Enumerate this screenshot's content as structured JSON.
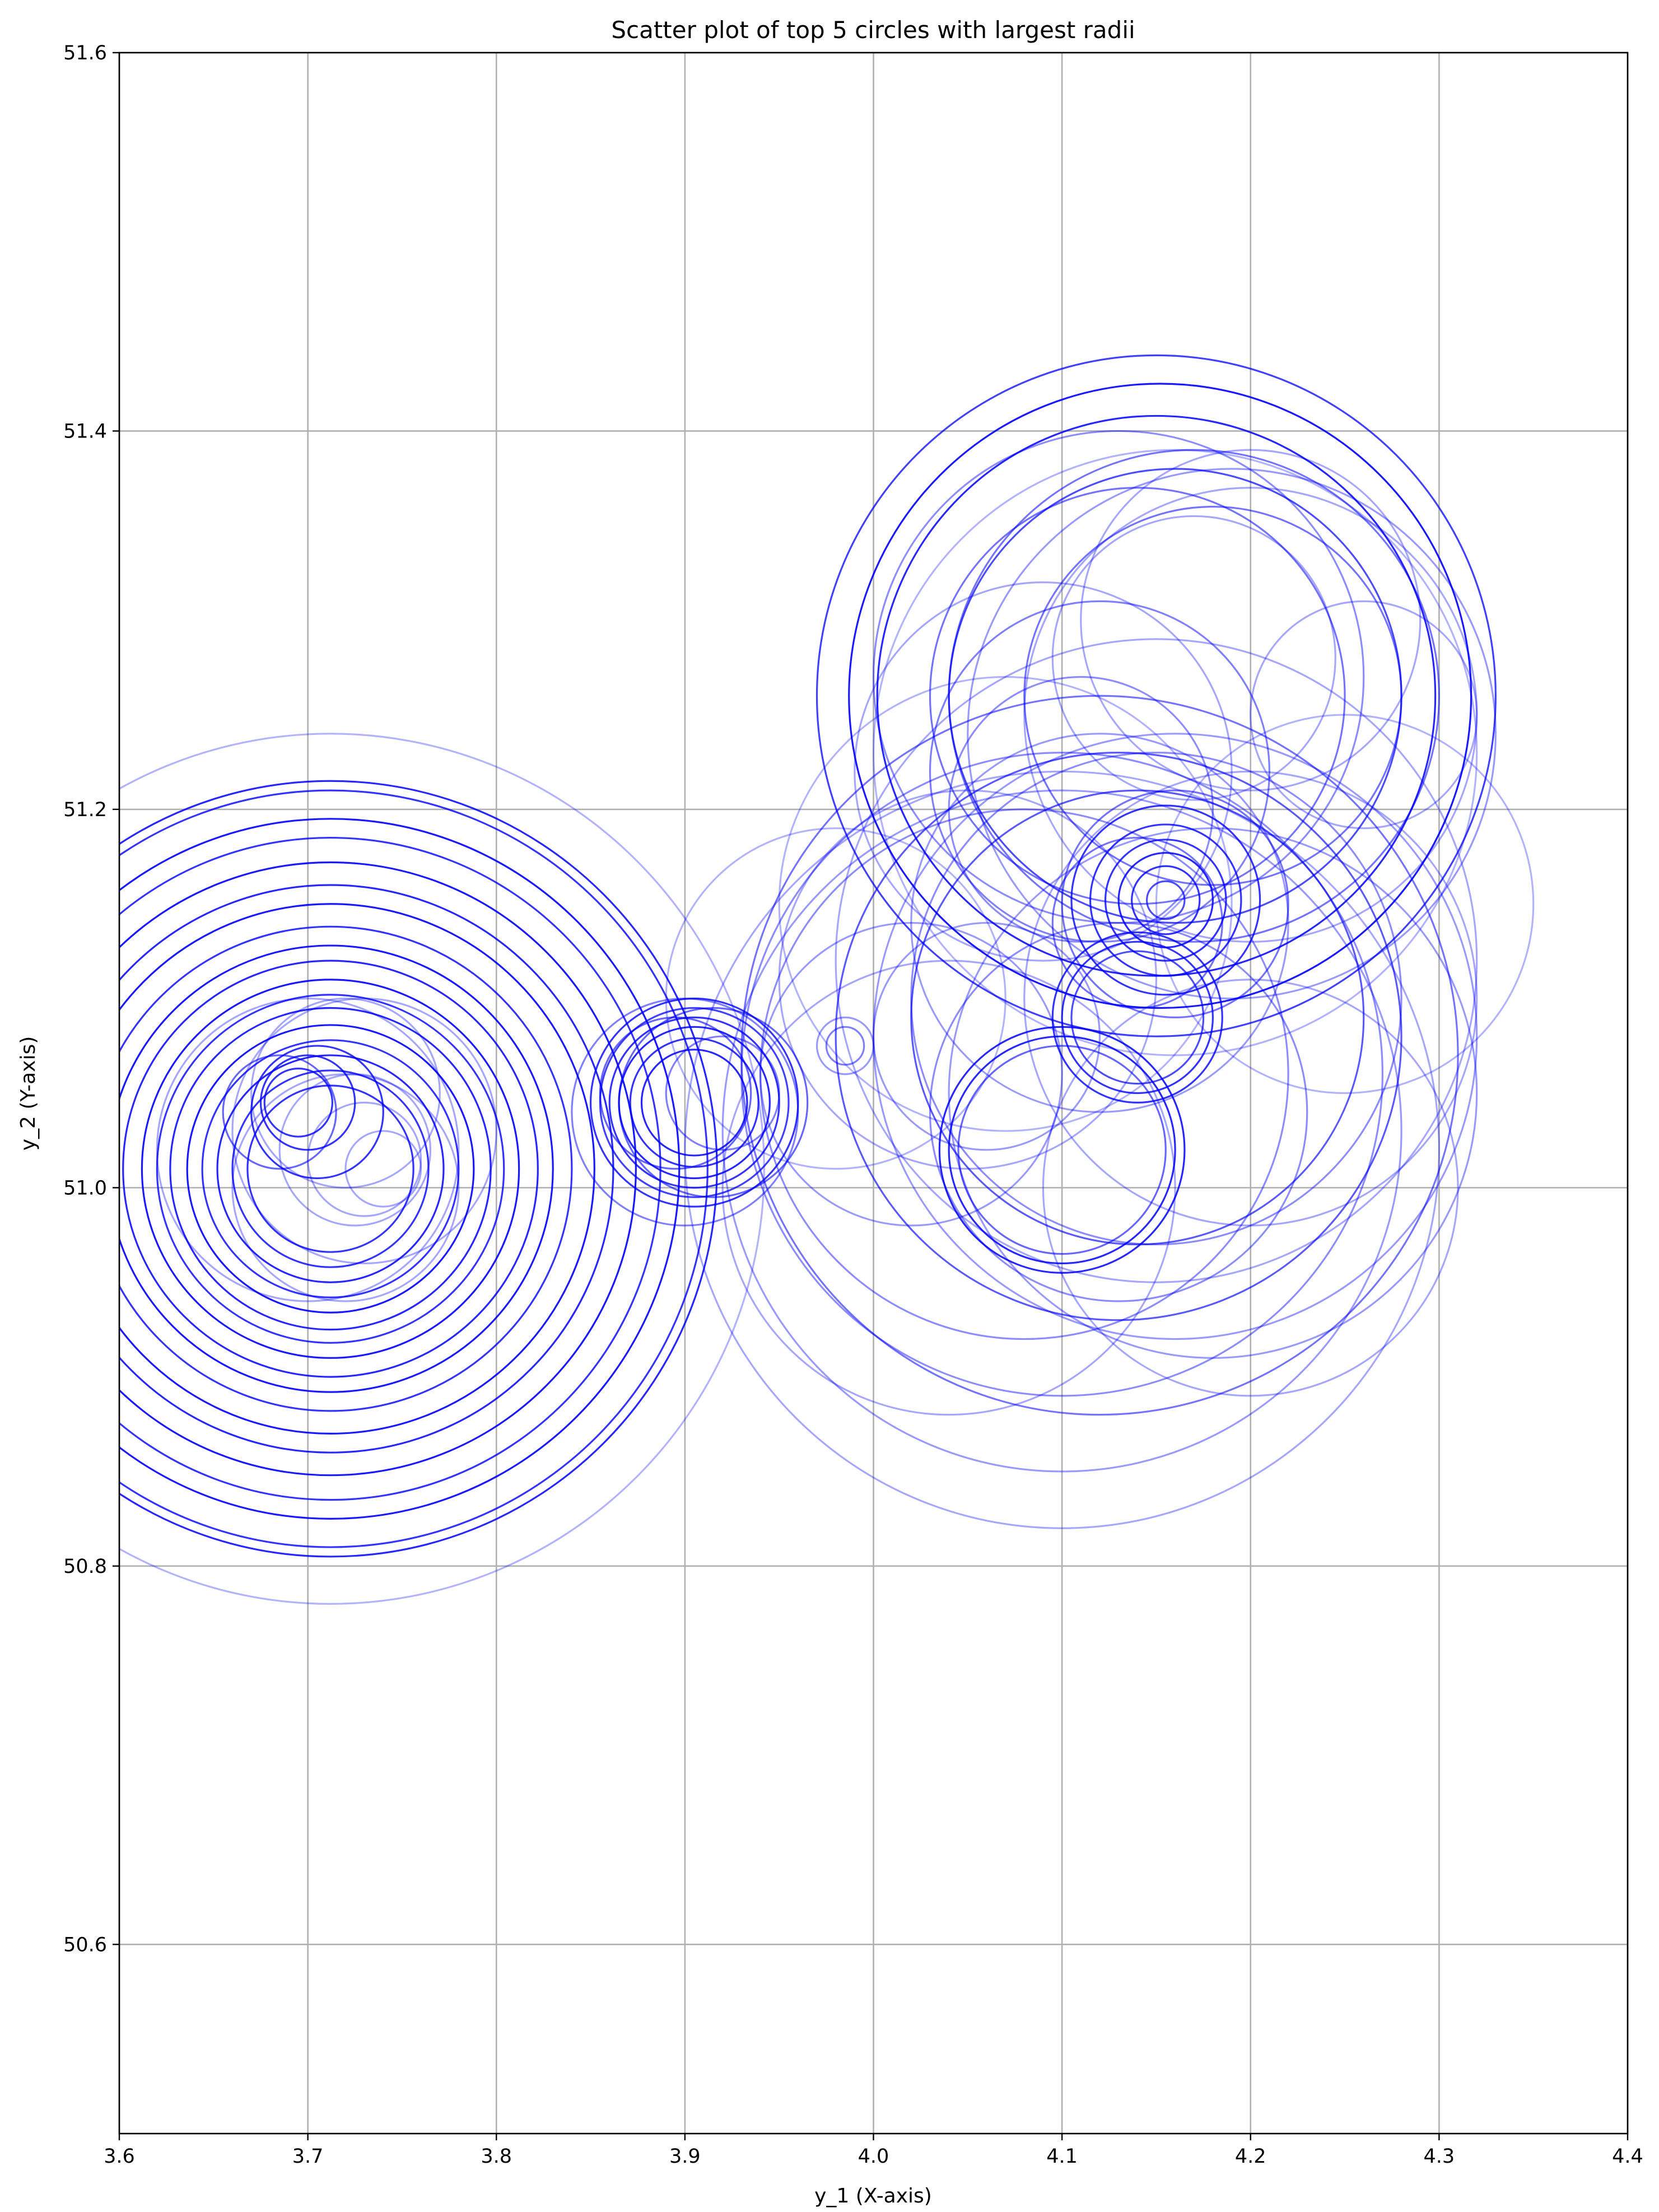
{
  "chart_data": {
    "type": "scatter",
    "title": "Scatter plot of top 5 circles with largest radii",
    "xlabel": "y_1 (X-axis)",
    "ylabel": "y_2 (Y-axis)",
    "xlim": [
      3.6,
      4.4
    ],
    "ylim": [
      50.5,
      51.6
    ],
    "xticks": [
      "3.6",
      "3.7",
      "3.8",
      "3.9",
      "4.0",
      "4.1",
      "4.2",
      "4.3",
      "4.4"
    ],
    "yticks": [
      "50.6",
      "50.8",
      "51.0",
      "51.2",
      "51.4",
      "51.6"
    ],
    "grid": true,
    "marker": "hollow-circle",
    "color": "#0000ff",
    "clusters": [
      {
        "center": [
          3.712,
          51.01
        ],
        "circles": [
          {
            "x": 3.712,
            "y": 51.01,
            "r": 0.23,
            "alpha": 0.3
          },
          {
            "x": 3.712,
            "y": 51.01,
            "r": 0.205,
            "alpha": 0.85
          },
          {
            "x": 3.712,
            "y": 51.01,
            "r": 0.2,
            "alpha": 0.8
          },
          {
            "x": 3.712,
            "y": 51.01,
            "r": 0.185,
            "alpha": 0.9
          },
          {
            "x": 3.712,
            "y": 51.01,
            "r": 0.175,
            "alpha": 0.8
          },
          {
            "x": 3.712,
            "y": 51.01,
            "r": 0.162,
            "alpha": 0.9
          },
          {
            "x": 3.712,
            "y": 51.01,
            "r": 0.15,
            "alpha": 0.85
          },
          {
            "x": 3.712,
            "y": 51.01,
            "r": 0.14,
            "alpha": 0.9
          },
          {
            "x": 3.712,
            "y": 51.01,
            "r": 0.128,
            "alpha": 0.8
          },
          {
            "x": 3.712,
            "y": 51.01,
            "r": 0.118,
            "alpha": 0.9
          },
          {
            "x": 3.712,
            "y": 51.01,
            "r": 0.11,
            "alpha": 0.85
          },
          {
            "x": 3.712,
            "y": 51.01,
            "r": 0.1,
            "alpha": 0.9
          },
          {
            "x": 3.712,
            "y": 51.01,
            "r": 0.092,
            "alpha": 0.8
          },
          {
            "x": 3.712,
            "y": 51.01,
            "r": 0.085,
            "alpha": 0.85
          },
          {
            "x": 3.712,
            "y": 51.01,
            "r": 0.076,
            "alpha": 0.9
          },
          {
            "x": 3.712,
            "y": 51.01,
            "r": 0.068,
            "alpha": 0.8
          },
          {
            "x": 3.712,
            "y": 51.01,
            "r": 0.06,
            "alpha": 0.85
          },
          {
            "x": 3.712,
            "y": 51.01,
            "r": 0.052,
            "alpha": 0.8
          },
          {
            "x": 3.712,
            "y": 51.01,
            "r": 0.044,
            "alpha": 0.8
          },
          {
            "x": 3.705,
            "y": 51.04,
            "r": 0.035,
            "alpha": 0.8
          },
          {
            "x": 3.7,
            "y": 51.045,
            "r": 0.025,
            "alpha": 0.8
          },
          {
            "x": 3.695,
            "y": 51.045,
            "r": 0.018,
            "alpha": 0.8
          },
          {
            "x": 3.685,
            "y": 51.04,
            "r": 0.03,
            "alpha": 0.6
          },
          {
            "x": 3.725,
            "y": 51.02,
            "r": 0.04,
            "alpha": 0.35
          },
          {
            "x": 3.73,
            "y": 51.015,
            "r": 0.03,
            "alpha": 0.35
          },
          {
            "x": 3.74,
            "y": 51.01,
            "r": 0.02,
            "alpha": 0.35
          },
          {
            "x": 3.72,
            "y": 51.0,
            "r": 0.06,
            "alpha": 0.35
          },
          {
            "x": 3.73,
            "y": 51.03,
            "r": 0.07,
            "alpha": 0.35
          },
          {
            "x": 3.7,
            "y": 51.02,
            "r": 0.08,
            "alpha": 0.35
          },
          {
            "x": 3.72,
            "y": 51.05,
            "r": 0.05,
            "alpha": 0.35
          }
        ]
      },
      {
        "center": [
          3.905,
          51.045
        ],
        "circles": [
          {
            "x": 3.905,
            "y": 51.045,
            "r": 0.055,
            "alpha": 0.8
          },
          {
            "x": 3.905,
            "y": 51.045,
            "r": 0.05,
            "alpha": 0.75
          },
          {
            "x": 3.905,
            "y": 51.045,
            "r": 0.045,
            "alpha": 0.8
          },
          {
            "x": 3.905,
            "y": 51.045,
            "r": 0.04,
            "alpha": 0.85
          },
          {
            "x": 3.905,
            "y": 51.045,
            "r": 0.034,
            "alpha": 0.8
          },
          {
            "x": 3.905,
            "y": 51.045,
            "r": 0.028,
            "alpha": 0.85
          },
          {
            "x": 3.915,
            "y": 51.045,
            "r": 0.05,
            "alpha": 0.6
          },
          {
            "x": 3.9,
            "y": 51.04,
            "r": 0.06,
            "alpha": 0.5
          },
          {
            "x": 3.895,
            "y": 51.05,
            "r": 0.04,
            "alpha": 0.6
          },
          {
            "x": 3.92,
            "y": 51.05,
            "r": 0.03,
            "alpha": 0.5
          },
          {
            "x": 3.985,
            "y": 51.075,
            "r": 0.01,
            "alpha": 0.5
          },
          {
            "x": 3.985,
            "y": 51.075,
            "r": 0.015,
            "alpha": 0.4
          }
        ]
      },
      {
        "center": [
          4.15,
          51.26
        ],
        "circles": [
          {
            "x": 4.15,
            "y": 51.26,
            "r": 0.18,
            "alpha": 0.75
          },
          {
            "x": 4.152,
            "y": 51.26,
            "r": 0.165,
            "alpha": 0.9
          },
          {
            "x": 4.15,
            "y": 51.26,
            "r": 0.148,
            "alpha": 0.85
          },
          {
            "x": 4.16,
            "y": 51.26,
            "r": 0.12,
            "alpha": 0.7
          },
          {
            "x": 4.17,
            "y": 51.26,
            "r": 0.13,
            "alpha": 0.55
          },
          {
            "x": 4.14,
            "y": 51.26,
            "r": 0.11,
            "alpha": 0.55
          },
          {
            "x": 4.18,
            "y": 51.26,
            "r": 0.1,
            "alpha": 0.55
          },
          {
            "x": 4.12,
            "y": 51.22,
            "r": 0.09,
            "alpha": 0.5
          },
          {
            "x": 4.19,
            "y": 51.24,
            "r": 0.14,
            "alpha": 0.4
          },
          {
            "x": 4.2,
            "y": 51.25,
            "r": 0.12,
            "alpha": 0.35
          },
          {
            "x": 4.13,
            "y": 51.27,
            "r": 0.13,
            "alpha": 0.45
          },
          {
            "x": 4.17,
            "y": 51.28,
            "r": 0.075,
            "alpha": 0.35
          },
          {
            "x": 4.26,
            "y": 51.25,
            "r": 0.06,
            "alpha": 0.35
          },
          {
            "x": 4.11,
            "y": 51.2,
            "r": 0.07,
            "alpha": 0.45
          },
          {
            "x": 4.09,
            "y": 51.22,
            "r": 0.1,
            "alpha": 0.35
          },
          {
            "x": 4.2,
            "y": 51.3,
            "r": 0.09,
            "alpha": 0.35
          },
          {
            "x": 4.16,
            "y": 51.23,
            "r": 0.16,
            "alpha": 0.3
          }
        ]
      },
      {
        "center": [
          4.155,
          51.152
        ],
        "circles": [
          {
            "x": 4.155,
            "y": 51.152,
            "r": 0.05,
            "alpha": 0.8
          },
          {
            "x": 4.155,
            "y": 51.152,
            "r": 0.04,
            "alpha": 0.8
          },
          {
            "x": 4.155,
            "y": 51.152,
            "r": 0.032,
            "alpha": 0.8
          },
          {
            "x": 4.155,
            "y": 51.152,
            "r": 0.025,
            "alpha": 0.85
          },
          {
            "x": 4.155,
            "y": 51.152,
            "r": 0.018,
            "alpha": 0.8
          },
          {
            "x": 4.155,
            "y": 51.152,
            "r": 0.01,
            "alpha": 0.7
          },
          {
            "x": 4.16,
            "y": 51.15,
            "r": 0.06,
            "alpha": 0.55
          },
          {
            "x": 4.14,
            "y": 51.14,
            "r": 0.045,
            "alpha": 0.55
          }
        ]
      },
      {
        "center": [
          4.12,
          51.07
        ],
        "circles": [
          {
            "x": 4.12,
            "y": 51.07,
            "r": 0.19,
            "alpha": 0.55
          },
          {
            "x": 4.13,
            "y": 51.08,
            "r": 0.15,
            "alpha": 0.65
          },
          {
            "x": 4.14,
            "y": 51.09,
            "r": 0.12,
            "alpha": 0.65
          },
          {
            "x": 4.1,
            "y": 51.06,
            "r": 0.17,
            "alpha": 0.45
          },
          {
            "x": 4.1,
            "y": 51.02,
            "r": 0.2,
            "alpha": 0.35
          },
          {
            "x": 4.1,
            "y": 51.03,
            "r": 0.18,
            "alpha": 0.4
          },
          {
            "x": 4.15,
            "y": 51.1,
            "r": 0.13,
            "alpha": 0.45
          },
          {
            "x": 4.16,
            "y": 51.08,
            "r": 0.16,
            "alpha": 0.4
          },
          {
            "x": 4.08,
            "y": 51.06,
            "r": 0.14,
            "alpha": 0.45
          },
          {
            "x": 4.2,
            "y": 51.1,
            "r": 0.12,
            "alpha": 0.35
          },
          {
            "x": 4.15,
            "y": 51.12,
            "r": 0.17,
            "alpha": 0.35
          },
          {
            "x": 4.18,
            "y": 51.05,
            "r": 0.14,
            "alpha": 0.4
          },
          {
            "x": 4.1,
            "y": 51.02,
            "r": 0.065,
            "alpha": 0.85
          },
          {
            "x": 4.1,
            "y": 51.02,
            "r": 0.06,
            "alpha": 0.85
          },
          {
            "x": 4.1,
            "y": 51.02,
            "r": 0.055,
            "alpha": 0.6
          },
          {
            "x": 4.14,
            "y": 51.09,
            "r": 0.045,
            "alpha": 0.8
          },
          {
            "x": 4.14,
            "y": 51.09,
            "r": 0.04,
            "alpha": 0.8
          },
          {
            "x": 4.14,
            "y": 51.09,
            "r": 0.035,
            "alpha": 0.7
          },
          {
            "x": 4.05,
            "y": 51.11,
            "r": 0.1,
            "alpha": 0.35
          },
          {
            "x": 4.02,
            "y": 51.06,
            "r": 0.08,
            "alpha": 0.4
          },
          {
            "x": 4.04,
            "y": 51.0,
            "r": 0.12,
            "alpha": 0.35
          },
          {
            "x": 4.2,
            "y": 51.0,
            "r": 0.11,
            "alpha": 0.35
          },
          {
            "x": 4.25,
            "y": 51.15,
            "r": 0.1,
            "alpha": 0.3
          },
          {
            "x": 3.98,
            "y": 51.1,
            "r": 0.09,
            "alpha": 0.3
          },
          {
            "x": 4.07,
            "y": 51.15,
            "r": 0.12,
            "alpha": 0.3
          },
          {
            "x": 4.12,
            "y": 51.14,
            "r": 0.1,
            "alpha": 0.4
          },
          {
            "x": 4.06,
            "y": 51.08,
            "r": 0.06,
            "alpha": 0.4
          },
          {
            "x": 4.13,
            "y": 51.04,
            "r": 0.1,
            "alpha": 0.45
          }
        ]
      }
    ]
  }
}
